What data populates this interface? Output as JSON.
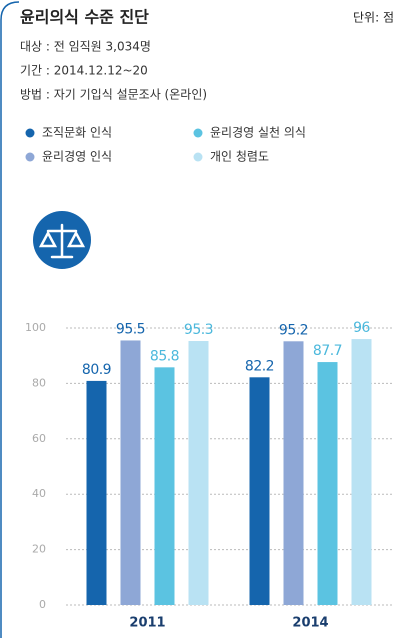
{
  "chart_data": {
    "type": "bar",
    "title": "윤리의식 수준 진단",
    "unit": "단위: 점",
    "notes": [
      "대상 : 전 임직원 3,034명",
      "기간 : 2014.12.12~20",
      "방법 : 자기 기입식 설문조사 (온라인)"
    ],
    "categories": [
      "2011",
      "2014"
    ],
    "series": [
      {
        "name": "조직문화 인식",
        "color": "#1565ad",
        "label_color": "#1565ad",
        "values": [
          80.9,
          82.2
        ]
      },
      {
        "name": "윤리경영 인식",
        "color": "#8ea7d6",
        "label_color": "#1565ad",
        "values": [
          95.5,
          95.2
        ]
      },
      {
        "name": "윤리경영 실천 의식",
        "color": "#5bc3e1",
        "label_color": "#4bb8dc",
        "values": [
          85.8,
          87.7
        ]
      },
      {
        "name": "개인 청렴도",
        "color": "#b9e2f3",
        "label_color": "#4bb8dc",
        "values": [
          95.3,
          96
        ]
      }
    ],
    "ylim": [
      0,
      100
    ],
    "yticks": [
      0,
      20,
      40,
      60,
      80,
      100
    ],
    "grid": true
  }
}
